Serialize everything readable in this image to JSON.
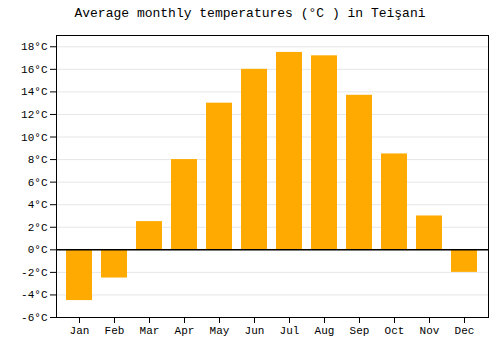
{
  "chart_data": {
    "type": "bar",
    "title": "Average monthly temperatures (°C ) in Teişani",
    "categories": [
      "Jan",
      "Feb",
      "Mar",
      "Apr",
      "May",
      "Jun",
      "Jul",
      "Aug",
      "Sep",
      "Oct",
      "Nov",
      "Dec"
    ],
    "values": [
      -4.5,
      -2.5,
      2.5,
      8.0,
      13.0,
      16.0,
      17.5,
      17.2,
      13.7,
      8.5,
      3.0,
      -2.0
    ],
    "color": "#FFAA00",
    "ylim": [
      -6,
      19
    ],
    "yticks": [
      {
        "value": -6,
        "label": "-6°C"
      },
      {
        "value": -4,
        "label": "-4°C"
      },
      {
        "value": -2,
        "label": "-2°C"
      },
      {
        "value": 0,
        "label": "0°C"
      },
      {
        "value": 2,
        "label": "2°C"
      },
      {
        "value": 4,
        "label": "4°C"
      },
      {
        "value": 6,
        "label": "6°C"
      },
      {
        "value": 8,
        "label": "8°C"
      },
      {
        "value": 10,
        "label": "10°C"
      },
      {
        "value": 12,
        "label": "12°C"
      },
      {
        "value": 14,
        "label": "14°C"
      },
      {
        "value": 16,
        "label": "16°C"
      },
      {
        "value": 18,
        "label": "18°C"
      }
    ],
    "grid": true
  }
}
